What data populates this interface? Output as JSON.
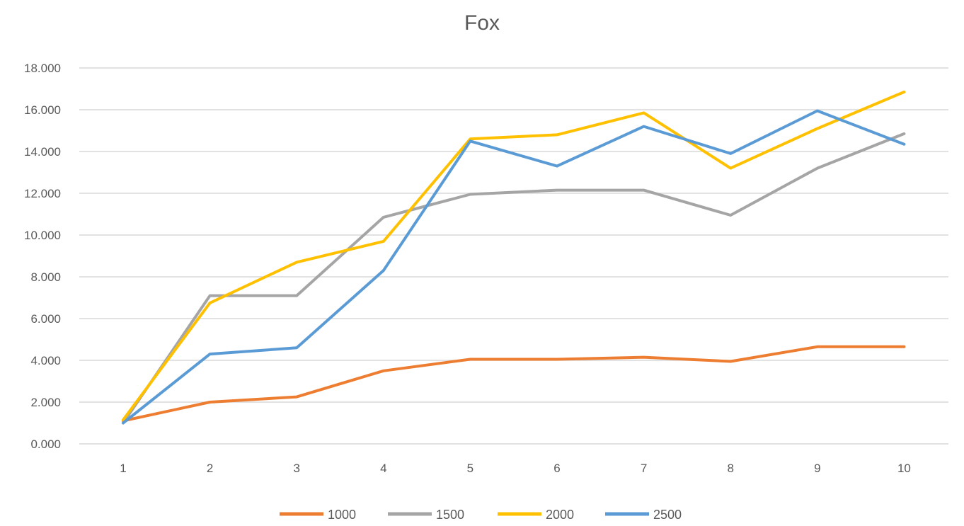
{
  "chart_data": {
    "type": "line",
    "title": "Fox",
    "xlabel": "",
    "ylabel": "",
    "x": [
      1,
      2,
      3,
      4,
      5,
      6,
      7,
      8,
      9,
      10
    ],
    "x_tick_labels": [
      "1",
      "2",
      "3",
      "4",
      "5",
      "6",
      "7",
      "8",
      "9",
      "10"
    ],
    "ylim": [
      0,
      18
    ],
    "y_ticks": [
      0,
      2,
      4,
      6,
      8,
      10,
      12,
      14,
      16,
      18
    ],
    "y_tick_labels": [
      "0.000",
      "2.000",
      "4.000",
      "6.000",
      "8.000",
      "10.000",
      "12.000",
      "14.000",
      "16.000",
      "18.000"
    ],
    "grid": true,
    "legend_position": "bottom",
    "series": [
      {
        "name": "1000",
        "color": "#ed7d31",
        "values": [
          1.1,
          2.0,
          2.25,
          3.5,
          4.05,
          4.05,
          4.15,
          3.95,
          4.65,
          4.65
        ]
      },
      {
        "name": "1500",
        "color": "#a5a5a5",
        "values": [
          1.0,
          7.1,
          7.1,
          10.85,
          11.95,
          12.15,
          12.15,
          10.95,
          13.2,
          14.85
        ]
      },
      {
        "name": "2000",
        "color": "#ffc000",
        "values": [
          1.15,
          6.75,
          8.7,
          9.7,
          14.6,
          14.8,
          15.85,
          13.2,
          15.1,
          16.85
        ]
      },
      {
        "name": "2500",
        "color": "#5b9bd5",
        "values": [
          1.0,
          4.3,
          4.6,
          8.3,
          14.5,
          13.3,
          15.2,
          13.9,
          15.95,
          14.35
        ]
      }
    ]
  }
}
